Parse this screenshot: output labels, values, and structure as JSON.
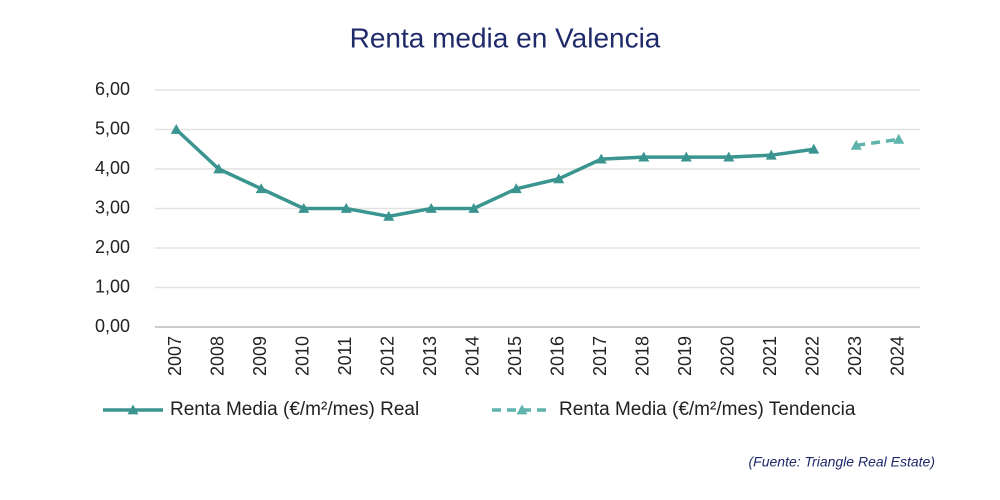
{
  "chart_data": {
    "type": "line",
    "title": "Renta media en Valencia",
    "categories": [
      "2007",
      "2008",
      "2009",
      "2010",
      "2011",
      "2012",
      "2013",
      "2014",
      "2015",
      "2016",
      "2017",
      "2018",
      "2019",
      "2020",
      "2021",
      "2022",
      "2023",
      "2024"
    ],
    "series": [
      {
        "name": "Renta Media (€/m²/mes) Real",
        "color": "#3a9490",
        "linestyle": "solid",
        "values": [
          5.0,
          4.0,
          3.5,
          3.0,
          3.0,
          2.8,
          3.0,
          3.0,
          3.5,
          3.75,
          4.25,
          4.3,
          4.3,
          4.3,
          4.35,
          4.5,
          null,
          null
        ]
      },
      {
        "name": "Renta Media (€/m²/mes) Tendencia",
        "color": "#5fb3ad",
        "linestyle": "dashed",
        "values": [
          null,
          null,
          null,
          null,
          null,
          null,
          null,
          null,
          null,
          null,
          null,
          null,
          null,
          null,
          null,
          null,
          4.6,
          4.75
        ]
      }
    ],
    "ylim": [
      0,
      6
    ],
    "yticks": [
      {
        "value": 0,
        "label": "0,00"
      },
      {
        "value": 1,
        "label": "1,00"
      },
      {
        "value": 2,
        "label": "2,00"
      },
      {
        "value": 3,
        "label": "3,00"
      },
      {
        "value": 4,
        "label": "4,00"
      },
      {
        "value": 5,
        "label": "5,00"
      },
      {
        "value": 6,
        "label": "6,00"
      }
    ],
    "grid": true,
    "legend": "bottom",
    "source": "(Fuente: Triangle Real Estate)"
  }
}
